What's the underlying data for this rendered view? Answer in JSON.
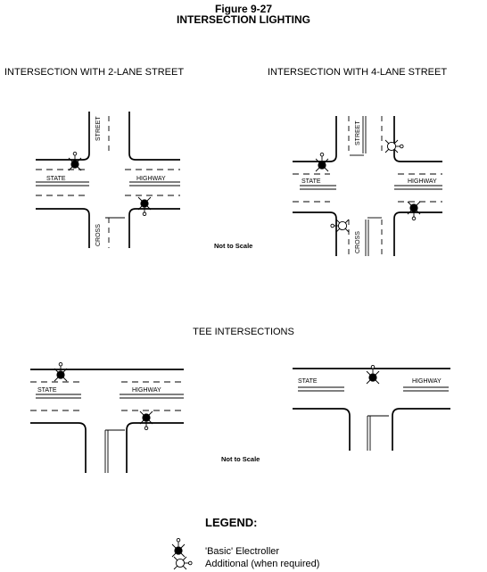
{
  "figure_number": "Figure 9-27",
  "figure_title": "INTERSECTION LIGHTING",
  "sections": {
    "two_lane": "INTERSECTION WITH 2-LANE STREET",
    "four_lane": "INTERSECTION WITH 4-LANE STREET",
    "tee": "TEE INTERSECTIONS"
  },
  "street_labels": {
    "state": "STATE",
    "highway": "HIGHWAY",
    "street": "STREET",
    "cross": "CROSS"
  },
  "not_to_scale": "Not to Scale",
  "legend": {
    "title": "LEGEND:",
    "items": [
      {
        "symbol": "basic-electroller-icon",
        "label": "'Basic' Electroller"
      },
      {
        "symbol": "additional-electroller-icon",
        "label": "Additional  (when required)"
      }
    ]
  }
}
